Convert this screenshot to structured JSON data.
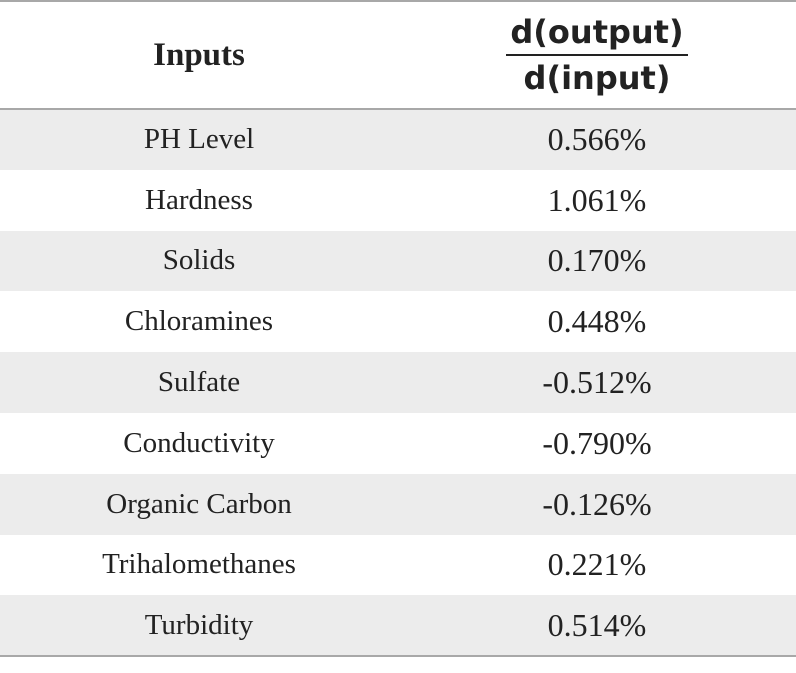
{
  "table": {
    "header": {
      "inputs_label": "Inputs",
      "derivative_numerator": "d(output)",
      "derivative_denominator": "d(input)"
    },
    "rows": [
      {
        "input": "PH Level",
        "value": "0.566%"
      },
      {
        "input": "Hardness",
        "value": "1.061%"
      },
      {
        "input": "Solids",
        "value": "0.170%"
      },
      {
        "input": "Chloramines",
        "value": "0.448%"
      },
      {
        "input": "Sulfate",
        "value": "-0.512%"
      },
      {
        "input": "Conductivity",
        "value": "-0.790%"
      },
      {
        "input": "Organic Carbon",
        "value": "-0.126%"
      },
      {
        "input": "Trihalomethanes",
        "value": "0.221%"
      },
      {
        "input": "Turbidity",
        "value": "0.514%"
      }
    ]
  }
}
